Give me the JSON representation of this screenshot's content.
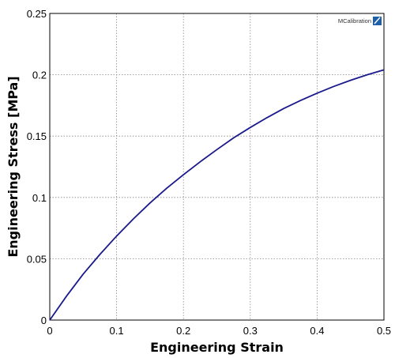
{
  "chart_data": {
    "type": "line",
    "title": "",
    "xlabel": "Engineering Strain",
    "ylabel": "Engineering Stress [MPa]",
    "xlim": [
      0,
      0.5
    ],
    "ylim": [
      0,
      0.25
    ],
    "xticks": [
      0,
      0.1,
      0.2,
      0.3,
      0.4,
      0.5
    ],
    "xtick_labels": [
      "0",
      "0.1",
      "0.2",
      "0.3",
      "0.4",
      "0.5"
    ],
    "yticks": [
      0,
      0.05,
      0.1,
      0.15,
      0.2,
      0.25
    ],
    "ytick_labels": [
      "0",
      "0.05",
      "0.1",
      "0.15",
      "0.2",
      "0.25"
    ],
    "grid": true,
    "legend": "none",
    "series": [
      {
        "color": "#1a1a8c",
        "x": [
          0,
          0.025,
          0.05,
          0.075,
          0.1,
          0.125,
          0.15,
          0.175,
          0.2,
          0.225,
          0.25,
          0.275,
          0.3,
          0.325,
          0.35,
          0.375,
          0.4,
          0.425,
          0.45,
          0.475,
          0.5
        ],
        "y": [
          0,
          0.0195,
          0.0375,
          0.0535,
          0.0685,
          0.0825,
          0.0955,
          0.1075,
          0.1185,
          0.129,
          0.139,
          0.1485,
          0.157,
          0.165,
          0.1725,
          0.179,
          0.185,
          0.1905,
          0.1955,
          0.2,
          0.204
        ]
      }
    ]
  },
  "logo": {
    "text": "MCalibration",
    "color": "#1f5fa8"
  }
}
